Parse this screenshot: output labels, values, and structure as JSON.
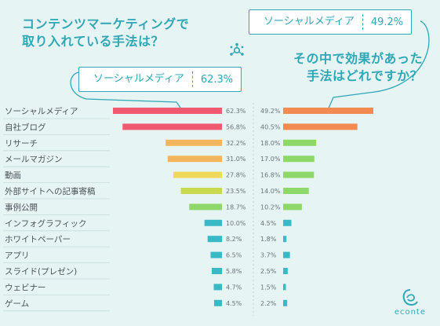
{
  "titles": {
    "left_line1": "コンテンツマーケティングで",
    "left_line2": "取り入れている手法は？",
    "right_line1": "その中で効果があった",
    "right_line2": "手法はどれですか？"
  },
  "tags": {
    "left_label": "ソーシャルメディア",
    "left_value": "62.3%",
    "right_label": "ソーシャルメディア",
    "right_value": "49.2%"
  },
  "logo": {
    "text": "econte"
  },
  "colors": {
    "accent": "#2fa7b6",
    "left_series": [
      "#ef5a70",
      "#ef5a70",
      "#f2b55c",
      "#f2b55c",
      "#f0d95a",
      "#c9d94e",
      "#8ed86a",
      "#39b9c6",
      "#39b9c6",
      "#39b9c6",
      "#39b9c6",
      "#39b9c6",
      "#39b9c6"
    ],
    "right_series": [
      "#f28a52",
      "#f28a52",
      "#8ed86a",
      "#8ed86a",
      "#8ed86a",
      "#8ed86a",
      "#8ed86a",
      "#39b9c6",
      "#39b9c6",
      "#39b9c6",
      "#39b9c6",
      "#39b9c6",
      "#39b9c6"
    ]
  },
  "chart_data": {
    "type": "bar",
    "categories": [
      "ソーシャルメディア",
      "自社ブログ",
      "リサーチ",
      "メールマガジン",
      "動画",
      "外部サイトへの記事寄稿",
      "事例公開",
      "インフォグラフィック",
      "ホワイトペーパー",
      "アプリ",
      "スライド(プレゼン)",
      "ウェビナー",
      "ゲーム"
    ],
    "series": [
      {
        "values": [
          62.3,
          56.8,
          32.2,
          31.0,
          27.8,
          23.5,
          18.7,
          10.0,
          8.2,
          6.5,
          5.8,
          4.7,
          4.5
        ],
        "labels": [
          "62.3%",
          "56.8%",
          "32.2%",
          "31.0%",
          "27.8%",
          "23.5%",
          "18.7%",
          "10.0%",
          "8.2%",
          "6.5%",
          "5.8%",
          "4.7%",
          "4.5%"
        ]
      },
      {
        "values": [
          49.2,
          40.5,
          18.0,
          17.0,
          16.8,
          14.0,
          10.2,
          4.5,
          1.8,
          3.7,
          2.5,
          1.5,
          2.2
        ],
        "labels": [
          "49.2%",
          "40.5%",
          "18.0%",
          "17.0%",
          "16.8%",
          "14.0%",
          "10.2%",
          "4.5%",
          "1.8%",
          "3.7%",
          "2.5%",
          "1.5%",
          "2.2%"
        ]
      }
    ]
  }
}
